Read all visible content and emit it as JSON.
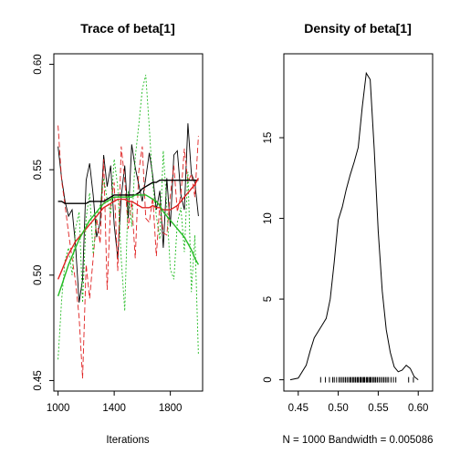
{
  "chart_data": [
    {
      "type": "line",
      "title": "Trace of beta[1]",
      "xlabel": "Iterations",
      "ylabel": "",
      "xlim": [
        970,
        2030
      ],
      "ylim": [
        0.445,
        0.605
      ],
      "xticks": [
        1000,
        1400,
        1800
      ],
      "yticks": [
        0.45,
        0.5,
        0.55,
        0.6
      ],
      "ytick_labels": [
        "0.45",
        "0.50",
        "0.55",
        "0.60"
      ],
      "x": [
        1000,
        1025,
        1050,
        1075,
        1100,
        1125,
        1150,
        1175,
        1200,
        1225,
        1250,
        1275,
        1300,
        1325,
        1350,
        1375,
        1400,
        1425,
        1450,
        1475,
        1500,
        1525,
        1550,
        1575,
        1600,
        1625,
        1650,
        1675,
        1700,
        1725,
        1750,
        1775,
        1800,
        1825,
        1850,
        1875,
        1900,
        1925,
        1950,
        1975,
        2000
      ],
      "series": [
        {
          "color": "#000000",
          "dash": "solid",
          "values": [
            0.561,
            0.546,
            0.535,
            0.528,
            0.531,
            0.514,
            0.487,
            0.498,
            0.545,
            0.553,
            0.538,
            0.518,
            0.525,
            0.557,
            0.542,
            0.552,
            0.524,
            0.508,
            0.537,
            0.552,
            0.527,
            0.562,
            0.551,
            0.543,
            0.535,
            0.546,
            0.558,
            0.547,
            0.531,
            0.54,
            0.513,
            0.546,
            0.523,
            0.557,
            0.559,
            0.538,
            0.531,
            0.572,
            0.548,
            0.544,
            0.528
          ]
        },
        {
          "color": "#df2020",
          "dash": "6,3",
          "values": [
            0.571,
            0.545,
            0.533,
            0.52,
            0.508,
            0.497,
            0.48,
            0.451,
            0.505,
            0.489,
            0.508,
            0.527,
            0.515,
            0.555,
            0.493,
            0.534,
            0.544,
            0.502,
            0.561,
            0.545,
            0.522,
            0.535,
            0.508,
            0.549,
            0.561,
            0.527,
            0.525,
            0.537,
            0.509,
            0.534,
            0.52,
            0.519,
            0.538,
            0.552,
            0.53,
            0.538,
            0.56,
            0.544,
            0.548,
            0.537,
            0.566
          ]
        },
        {
          "color": "#22bb22",
          "dash": "2,2",
          "values": [
            0.46,
            0.488,
            0.507,
            0.513,
            0.5,
            0.522,
            0.53,
            0.487,
            0.527,
            0.539,
            0.51,
            0.528,
            0.533,
            0.546,
            0.536,
            0.529,
            0.555,
            0.542,
            0.508,
            0.483,
            0.54,
            0.523,
            0.556,
            0.571,
            0.588,
            0.595,
            0.57,
            0.543,
            0.528,
            0.517,
            0.559,
            0.532,
            0.503,
            0.498,
            0.525,
            0.532,
            0.511,
            0.549,
            0.492,
            0.519,
            0.462
          ]
        },
        {
          "color": "#000000",
          "dash": "solid",
          "width": 1.4,
          "values": [
            0.535,
            0.535,
            0.534,
            0.534,
            0.534,
            0.534,
            0.534,
            0.534,
            0.534,
            0.535,
            0.535,
            0.535,
            0.535,
            0.535,
            0.536,
            0.537,
            0.538,
            0.538,
            0.538,
            0.538,
            0.538,
            0.538,
            0.538,
            0.539,
            0.541,
            0.542,
            0.543,
            0.544,
            0.544,
            0.545,
            0.545,
            0.545,
            0.545,
            0.545,
            0.545,
            0.545,
            0.545,
            0.545,
            0.545,
            0.545,
            0.545
          ]
        },
        {
          "color": "#df2020",
          "dash": "solid",
          "width": 1.4,
          "values": [
            0.498,
            0.502,
            0.506,
            0.51,
            0.513,
            0.516,
            0.518,
            0.52,
            0.522,
            0.524,
            0.526,
            0.528,
            0.53,
            0.532,
            0.533,
            0.534,
            0.535,
            0.536,
            0.536,
            0.536,
            0.535,
            0.535,
            0.534,
            0.533,
            0.532,
            0.532,
            0.532,
            0.533,
            0.532,
            0.532,
            0.531,
            0.531,
            0.531,
            0.532,
            0.533,
            0.535,
            0.537,
            0.539,
            0.541,
            0.543,
            0.546
          ]
        },
        {
          "color": "#22bb22",
          "dash": "solid",
          "width": 1.4,
          "values": [
            0.49,
            0.495,
            0.5,
            0.505,
            0.509,
            0.513,
            0.517,
            0.52,
            0.523,
            0.526,
            0.528,
            0.53,
            0.532,
            0.534,
            0.535,
            0.536,
            0.537,
            0.537,
            0.537,
            0.537,
            0.537,
            0.537,
            0.538,
            0.538,
            0.538,
            0.538,
            0.537,
            0.536,
            0.535,
            0.533,
            0.53,
            0.528,
            0.526,
            0.524,
            0.522,
            0.52,
            0.518,
            0.515,
            0.512,
            0.508,
            0.505
          ]
        }
      ]
    },
    {
      "type": "line",
      "title": "Density of beta[1]",
      "xlabel": "N = 1000   Bandwidth = 0.005086",
      "ylabel": "",
      "xlim": [
        0.432,
        0.618
      ],
      "ylim": [
        -0.7,
        20.2
      ],
      "xticks": [
        0.45,
        0.5,
        0.55,
        0.6
      ],
      "xtick_labels": [
        "0.45",
        "0.50",
        "0.55",
        "0.60"
      ],
      "yticks": [
        0,
        5,
        10,
        15
      ],
      "ytick_labels": [
        "0",
        "5",
        "10",
        "15"
      ],
      "density": {
        "x": [
          0.44,
          0.45,
          0.46,
          0.465,
          0.47,
          0.475,
          0.48,
          0.485,
          0.49,
          0.495,
          0.5,
          0.505,
          0.51,
          0.515,
          0.52,
          0.525,
          0.53,
          0.535,
          0.54,
          0.545,
          0.55,
          0.555,
          0.56,
          0.565,
          0.57,
          0.575,
          0.58,
          0.585,
          0.59,
          0.595,
          0.6
        ],
        "y": [
          0.0,
          0.1,
          0.9,
          1.8,
          2.6,
          3.0,
          3.4,
          3.8,
          5.0,
          7.3,
          9.9,
          10.7,
          11.8,
          12.7,
          13.5,
          14.4,
          16.9,
          19.0,
          18.6,
          14.3,
          9.2,
          5.5,
          3.1,
          1.7,
          0.8,
          0.5,
          0.6,
          0.9,
          0.7,
          0.2,
          0.0
        ]
      },
      "rug": [
        0.478,
        0.484,
        0.489,
        0.493,
        0.495,
        0.498,
        0.501,
        0.503,
        0.505,
        0.507,
        0.509,
        0.511,
        0.513,
        0.515,
        0.516,
        0.518,
        0.519,
        0.521,
        0.522,
        0.524,
        0.525,
        0.527,
        0.528,
        0.529,
        0.531,
        0.532,
        0.533,
        0.535,
        0.536,
        0.537,
        0.539,
        0.54,
        0.541,
        0.543,
        0.544,
        0.546,
        0.547,
        0.549,
        0.551,
        0.553,
        0.555,
        0.557,
        0.559,
        0.561,
        0.563,
        0.566,
        0.569,
        0.572,
        0.588,
        0.594
      ]
    }
  ]
}
